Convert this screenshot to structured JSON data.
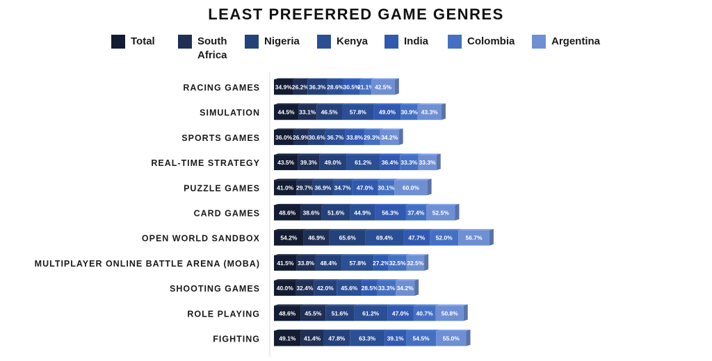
{
  "chart_data": {
    "type": "bar",
    "orientation": "horizontal",
    "stacked": true,
    "title": "LEAST PREFERRED GAME GENRES",
    "legend_position": "top",
    "value_suffix": "%",
    "categories": [
      "RACING GAMES",
      "SIMULATION",
      "SPORTS GAMES",
      "REAL-TIME STRATEGY",
      "PUZZLE GAMES",
      "CARD GAMES",
      "OPEN WORLD SANDBOX",
      "MULTIPLAYER ONLINE BATTLE ARENA (MOBA)",
      "SHOOTING GAMES",
      "ROLE PLAYING",
      "FIGHTING"
    ],
    "series": [
      {
        "name": "Total",
        "color": "#141c33",
        "values": [
          34.9,
          44.5,
          36.0,
          43.5,
          41.0,
          48.6,
          54.2,
          41.5,
          40.0,
          48.6,
          49.1
        ]
      },
      {
        "name": "South Africa",
        "color": "#1f2f55",
        "values": [
          26.2,
          33.1,
          26.9,
          39.3,
          29.7,
          38.6,
          46.9,
          33.8,
          32.4,
          45.5,
          41.4
        ]
      },
      {
        "name": "Nigeria",
        "color": "#24417a",
        "values": [
          36.3,
          46.5,
          30.6,
          49.0,
          36.9,
          51.6,
          65.6,
          48.4,
          42.0,
          51.6,
          47.8
        ]
      },
      {
        "name": "Kenya",
        "color": "#2b4f95",
        "values": [
          28.6,
          57.8,
          36.7,
          61.2,
          34.7,
          44.9,
          69.4,
          57.8,
          45.6,
          61.2,
          63.3
        ]
      },
      {
        "name": "India",
        "color": "#3159b0",
        "values": [
          30.5,
          49.0,
          33.8,
          36.4,
          47.0,
          56.3,
          47.7,
          27.2,
          28.5,
          47.0,
          39.1
        ]
      },
      {
        "name": "Colombia",
        "color": "#4570c2",
        "values": [
          21.1,
          30.9,
          29.3,
          33.3,
          30.1,
          37.4,
          52.0,
          32.5,
          33.3,
          40.7,
          54.5
        ]
      },
      {
        "name": "Argentina",
        "color": "#6f8fd3",
        "values": [
          42.5,
          43.3,
          34.2,
          33.3,
          60.0,
          52.5,
          56.7,
          32.5,
          34.2,
          50.8,
          55.0
        ]
      }
    ]
  }
}
